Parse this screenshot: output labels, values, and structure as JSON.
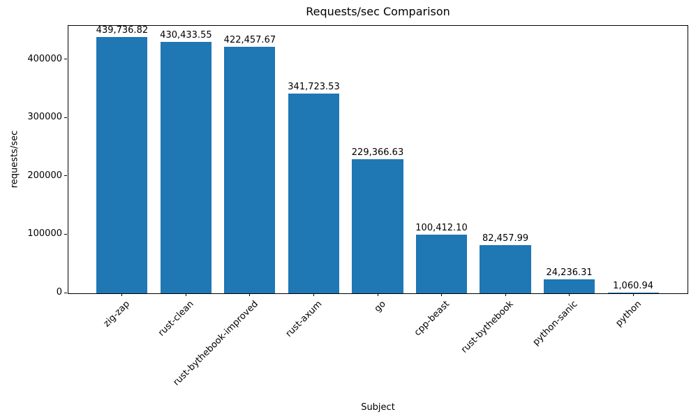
{
  "chart_data": {
    "type": "bar",
    "title": "Requests/sec Comparison",
    "xlabel": "Subject",
    "ylabel": "requests/sec",
    "categories": [
      "zig-zap",
      "rust-clean",
      "rust-bythebook-improved",
      "rust-axum",
      "go",
      "cpp-beast",
      "rust-bythebook",
      "python-sanic",
      "python"
    ],
    "values": [
      439736.82,
      430433.55,
      422457.67,
      341723.53,
      229366.63,
      100412.1,
      82457.99,
      24236.31,
      1060.94
    ],
    "value_labels": [
      "439,736.82",
      "430,433.55",
      "422,457.67",
      "341,723.53",
      "229,366.63",
      "100,412.10",
      "82,457.99",
      "24,236.31",
      "1,060.94"
    ],
    "yticks": [
      0,
      100000,
      200000,
      300000,
      400000
    ],
    "ytick_labels": [
      "0",
      "100000",
      "200000",
      "300000",
      "400000"
    ],
    "ylim": [
      0,
      457143
    ],
    "bar_color": "#1f77b4",
    "grid": false,
    "legend": null
  }
}
